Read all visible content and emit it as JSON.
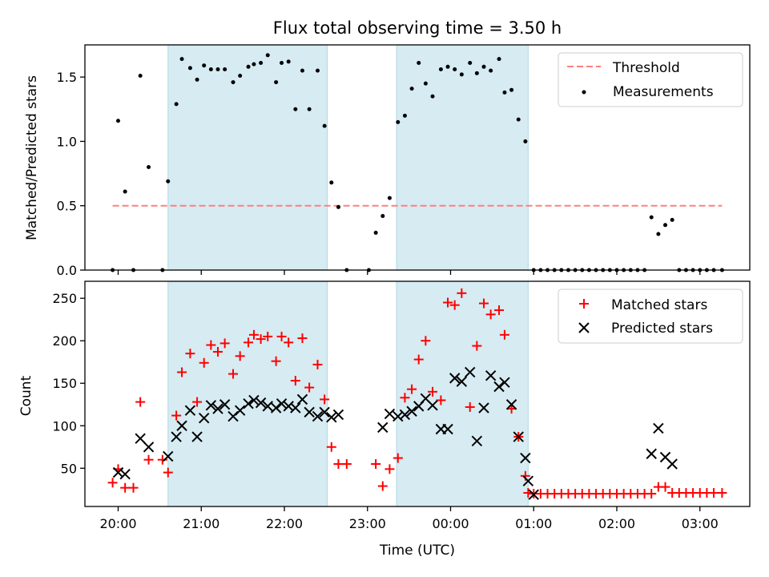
{
  "title": "Flux total observing time = 3.50 h",
  "colors": {
    "shade": "#add8e6",
    "threshold": "#ff7f7f",
    "measurements": "#000000",
    "matched": "#ff0000",
    "predicted": "#000000"
  },
  "chart_data": [
    {
      "type": "scatter",
      "ylabel": "Matched/Predicted stars",
      "ylim": [
        0,
        1.75
      ],
      "xlim": [
        "19:36",
        "03:36"
      ],
      "yticks": [
        0.0,
        0.5,
        1.0,
        1.5
      ],
      "ytick_labels": [
        "0.0",
        "0.5",
        "1.0",
        "1.5"
      ],
      "legend_position": "top-right",
      "legend": [
        "Threshold",
        "Measurements"
      ],
      "threshold": {
        "name": "Threshold",
        "y": 0.5,
        "x_start": "19:56",
        "x_end": "03:16"
      },
      "shaded_intervals": [
        [
          "20:36",
          "22:31"
        ],
        [
          "23:21",
          "00:56"
        ]
      ],
      "series": [
        {
          "name": "Measurements",
          "points": [
            [
              "19:56",
              0.0
            ],
            [
              "20:00",
              1.16
            ],
            [
              "20:05",
              0.61
            ],
            [
              "20:11",
              0.0
            ],
            [
              "20:16",
              1.51
            ],
            [
              "20:22",
              0.8
            ],
            [
              "20:32",
              0.0
            ],
            [
              "20:36",
              0.69
            ],
            [
              "20:42",
              1.29
            ],
            [
              "20:46",
              1.64
            ],
            [
              "20:52",
              1.57
            ],
            [
              "20:57",
              1.48
            ],
            [
              "21:02",
              1.59
            ],
            [
              "21:07",
              1.56
            ],
            [
              "21:12",
              1.56
            ],
            [
              "21:17",
              1.56
            ],
            [
              "21:23",
              1.46
            ],
            [
              "21:28",
              1.51
            ],
            [
              "21:34",
              1.58
            ],
            [
              "21:38",
              1.6
            ],
            [
              "21:43",
              1.61
            ],
            [
              "21:48",
              1.67
            ],
            [
              "21:54",
              1.46
            ],
            [
              "21:58",
              1.61
            ],
            [
              "22:03",
              1.62
            ],
            [
              "22:08",
              1.25
            ],
            [
              "22:13",
              1.55
            ],
            [
              "22:18",
              1.25
            ],
            [
              "22:24",
              1.55
            ],
            [
              "22:29",
              1.12
            ],
            [
              "22:34",
              0.68
            ],
            [
              "22:39",
              0.49
            ],
            [
              "22:45",
              0.0
            ],
            [
              "23:01",
              0.0
            ],
            [
              "23:06",
              0.29
            ],
            [
              "23:11",
              0.42
            ],
            [
              "23:16",
              0.56
            ],
            [
              "23:22",
              1.15
            ],
            [
              "23:27",
              1.2
            ],
            [
              "23:32",
              1.41
            ],
            [
              "23:37",
              1.61
            ],
            [
              "23:42",
              1.45
            ],
            [
              "23:47",
              1.35
            ],
            [
              "23:53",
              1.56
            ],
            [
              "23:58",
              1.58
            ],
            [
              "00:03",
              1.56
            ],
            [
              "00:08",
              1.52
            ],
            [
              "00:14",
              1.61
            ],
            [
              "00:19",
              1.53
            ],
            [
              "00:24",
              1.58
            ],
            [
              "00:29",
              1.55
            ],
            [
              "00:35",
              1.64
            ],
            [
              "00:39",
              1.38
            ],
            [
              "00:44",
              1.4
            ],
            [
              "00:49",
              1.17
            ],
            [
              "00:54",
              1.0
            ],
            [
              "01:00",
              0.0
            ],
            [
              "01:05",
              0.0
            ],
            [
              "01:10",
              0.0
            ],
            [
              "01:15",
              0.0
            ],
            [
              "01:20",
              0.0
            ],
            [
              "01:25",
              0.0
            ],
            [
              "01:30",
              0.0
            ],
            [
              "01:35",
              0.0
            ],
            [
              "01:40",
              0.0
            ],
            [
              "01:45",
              0.0
            ],
            [
              "01:50",
              0.0
            ],
            [
              "01:55",
              0.0
            ],
            [
              "02:00",
              0.0
            ],
            [
              "02:05",
              0.0
            ],
            [
              "02:10",
              0.0
            ],
            [
              "02:15",
              0.0
            ],
            [
              "02:20",
              0.0
            ],
            [
              "02:25",
              0.41
            ],
            [
              "02:30",
              0.28
            ],
            [
              "02:35",
              0.35
            ],
            [
              "02:40",
              0.39
            ],
            [
              "02:45",
              0.0
            ],
            [
              "02:50",
              0.0
            ],
            [
              "02:55",
              0.0
            ],
            [
              "03:00",
              0.0
            ],
            [
              "03:05",
              0.0
            ],
            [
              "03:10",
              0.0
            ],
            [
              "03:16",
              0.0
            ]
          ]
        }
      ]
    },
    {
      "type": "scatter",
      "xlabel": "Time (UTC)",
      "ylabel": "Count",
      "ylim": [
        5,
        270
      ],
      "xlim": [
        "19:36",
        "03:36"
      ],
      "yticks": [
        50,
        100,
        150,
        200,
        250
      ],
      "ytick_labels": [
        "50",
        "100",
        "150",
        "200",
        "250"
      ],
      "xticks": [
        "20:00",
        "21:00",
        "22:00",
        "23:00",
        "00:00",
        "01:00",
        "02:00",
        "03:00"
      ],
      "xtick_labels": [
        "20:00",
        "21:00",
        "22:00",
        "23:00",
        "00:00",
        "01:00",
        "02:00",
        "03:00"
      ],
      "legend_position": "top-right",
      "legend": [
        "Matched stars",
        "Predicted stars"
      ],
      "shaded_intervals": [
        [
          "20:36",
          "22:31"
        ],
        [
          "23:21",
          "00:56"
        ]
      ],
      "series": [
        {
          "name": "Matched stars",
          "marker": "plus",
          "points": [
            [
              "19:56",
              33
            ],
            [
              "20:00",
              49
            ],
            [
              "20:05",
              27
            ],
            [
              "20:11",
              27
            ],
            [
              "20:16",
              128
            ],
            [
              "20:22",
              60
            ],
            [
              "20:32",
              60
            ],
            [
              "20:36",
              45
            ],
            [
              "20:42",
              112
            ],
            [
              "20:46",
              163
            ],
            [
              "20:52",
              185
            ],
            [
              "20:57",
              128
            ],
            [
              "21:02",
              174
            ],
            [
              "21:07",
              195
            ],
            [
              "21:12",
              187
            ],
            [
              "21:17",
              197
            ],
            [
              "21:23",
              161
            ],
            [
              "21:28",
              182
            ],
            [
              "21:34",
              198
            ],
            [
              "21:38",
              207
            ],
            [
              "21:43",
              202
            ],
            [
              "21:48",
              205
            ],
            [
              "21:54",
              176
            ],
            [
              "21:58",
              205
            ],
            [
              "22:03",
              198
            ],
            [
              "22:08",
              153
            ],
            [
              "22:13",
              203
            ],
            [
              "22:18",
              145
            ],
            [
              "22:24",
              172
            ],
            [
              "22:29",
              131
            ],
            [
              "22:34",
              75
            ],
            [
              "22:39",
              55
            ],
            [
              "22:45",
              55
            ],
            [
              "23:06",
              55
            ],
            [
              "23:11",
              29
            ],
            [
              "23:16",
              49
            ],
            [
              "23:22",
              62
            ],
            [
              "23:27",
              133
            ],
            [
              "23:32",
              143
            ],
            [
              "23:37",
              178
            ],
            [
              "23:42",
              200
            ],
            [
              "23:47",
              140
            ],
            [
              "23:53",
              130
            ],
            [
              "23:58",
              245
            ],
            [
              "00:03",
              242
            ],
            [
              "00:08",
              256
            ],
            [
              "00:14",
              122
            ],
            [
              "00:19",
              194
            ],
            [
              "00:24",
              244
            ],
            [
              "00:29",
              231
            ],
            [
              "00:35",
              236
            ],
            [
              "00:39",
              207
            ],
            [
              "00:44",
              120
            ],
            [
              "00:49",
              87
            ],
            [
              "00:54",
              41
            ],
            [
              "00:56",
              21
            ],
            [
              "01:00",
              20
            ],
            [
              "01:05",
              20
            ],
            [
              "01:10",
              20
            ],
            [
              "01:15",
              20
            ],
            [
              "01:20",
              20
            ],
            [
              "01:25",
              20
            ],
            [
              "01:30",
              20
            ],
            [
              "01:35",
              20
            ],
            [
              "01:40",
              20
            ],
            [
              "01:45",
              20
            ],
            [
              "01:50",
              20
            ],
            [
              "01:55",
              20
            ],
            [
              "02:00",
              20
            ],
            [
              "02:05",
              20
            ],
            [
              "02:10",
              20
            ],
            [
              "02:15",
              20
            ],
            [
              "02:20",
              20
            ],
            [
              "02:25",
              20
            ],
            [
              "02:30",
              28
            ],
            [
              "02:35",
              28
            ],
            [
              "02:40",
              21
            ],
            [
              "02:45",
              21
            ],
            [
              "02:50",
              21
            ],
            [
              "02:55",
              21
            ],
            [
              "03:00",
              21
            ],
            [
              "03:05",
              21
            ],
            [
              "03:10",
              21
            ],
            [
              "03:16",
              21
            ]
          ]
        },
        {
          "name": "Predicted stars",
          "marker": "x",
          "points": [
            [
              "20:00",
              45
            ],
            [
              "20:05",
              43
            ],
            [
              "20:16",
              85
            ],
            [
              "20:22",
              75
            ],
            [
              "20:36",
              64
            ],
            [
              "20:42",
              87
            ],
            [
              "20:46",
              100
            ],
            [
              "20:52",
              118
            ],
            [
              "20:57",
              87
            ],
            [
              "21:02",
              109
            ],
            [
              "21:07",
              124
            ],
            [
              "21:12",
              120
            ],
            [
              "21:17",
              125
            ],
            [
              "21:23",
              111
            ],
            [
              "21:28",
              118
            ],
            [
              "21:34",
              126
            ],
            [
              "21:38",
              130
            ],
            [
              "21:43",
              127
            ],
            [
              "21:48",
              123
            ],
            [
              "21:54",
              121
            ],
            [
              "21:58",
              126
            ],
            [
              "22:03",
              123
            ],
            [
              "22:08",
              121
            ],
            [
              "22:13",
              131
            ],
            [
              "22:18",
              116
            ],
            [
              "22:24",
              111
            ],
            [
              "22:29",
              116
            ],
            [
              "22:34",
              110
            ],
            [
              "22:39",
              113
            ],
            [
              "23:11",
              98
            ],
            [
              "23:16",
              114
            ],
            [
              "23:22",
              111
            ],
            [
              "23:27",
              113
            ],
            [
              "23:32",
              117
            ],
            [
              "23:37",
              123
            ],
            [
              "23:42",
              132
            ],
            [
              "23:47",
              124
            ],
            [
              "23:53",
              96
            ],
            [
              "23:58",
              96
            ],
            [
              "00:03",
              156
            ],
            [
              "00:08",
              152
            ],
            [
              "00:14",
              163
            ],
            [
              "00:19",
              82
            ],
            [
              "00:24",
              121
            ],
            [
              "00:29",
              159
            ],
            [
              "00:35",
              146
            ],
            [
              "00:39",
              151
            ],
            [
              "00:44",
              125
            ],
            [
              "00:49",
              87
            ],
            [
              "00:54",
              62
            ],
            [
              "00:56",
              35
            ],
            [
              "01:00",
              19
            ],
            [
              "02:25",
              67
            ],
            [
              "02:30",
              97
            ],
            [
              "02:35",
              63
            ],
            [
              "02:40",
              55
            ]
          ]
        }
      ]
    }
  ]
}
